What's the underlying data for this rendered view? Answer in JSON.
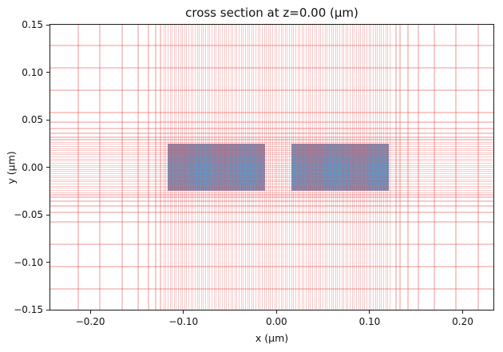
{
  "title": "cross section at z=0.00 (μm)",
  "chart_data": {
    "type": "2d-cross-section-mesh",
    "title": "cross section at z=0.00 (μm)",
    "xlabel": "x (μm)",
    "ylabel": "y (μm)",
    "xlim": [
      -0.243,
      0.233
    ],
    "ylim": [
      -0.15,
      0.15
    ],
    "xticks": {
      "values": [
        -0.2,
        -0.1,
        0.0,
        0.1,
        0.2
      ],
      "labels": [
        "−0.20",
        "−0.10",
        "0.00",
        "0.10",
        "0.20"
      ]
    },
    "yticks": {
      "values": [
        0.15,
        0.1,
        0.05,
        0.0,
        -0.05,
        -0.1,
        -0.15
      ],
      "labels": [
        "0.15",
        "0.10",
        "0.05",
        "0.00",
        "−0.05",
        "−0.10",
        "−0.15"
      ]
    },
    "grid": true,
    "legend": "none",
    "structures": [
      {
        "name": "waveguide-left",
        "x": [
          -0.117,
          -0.012
        ],
        "y": [
          -0.025,
          0.025
        ],
        "color": "#6F94BF"
      },
      {
        "name": "waveguide-right",
        "x": [
          0.016,
          0.121
        ],
        "y": [
          -0.025,
          0.025
        ],
        "color": "#6F94BF"
      }
    ],
    "mesh": {
      "line_color": "rgba(235,75,75,0.30)",
      "coarse_line_width": 2,
      "fine_line_width": 1,
      "x_lines": [
        -0.2134,
        -0.1898,
        -0.1662,
        -0.1485,
        -0.1375,
        -0.1295,
        -0.1245,
        0.128,
        0.133,
        0.141,
        0.152,
        0.1695,
        0.1931,
        0.2167
      ],
      "x_fine": {
        "from": -0.1211,
        "to": 0.1237,
        "step": 0.00225
      },
      "y_lines": [
        0.128,
        0.1046,
        0.0811,
        0.0576,
        0.0475,
        0.0408,
        0.0357,
        0.0315,
        0.029,
        -0.029,
        -0.0315,
        -0.0357,
        -0.0408,
        -0.0475,
        -0.0576,
        -0.0811,
        -0.1046,
        -0.128
      ],
      "y_fine": {
        "from": -0.0265,
        "to": 0.0265,
        "step": 0.0022
      }
    }
  }
}
